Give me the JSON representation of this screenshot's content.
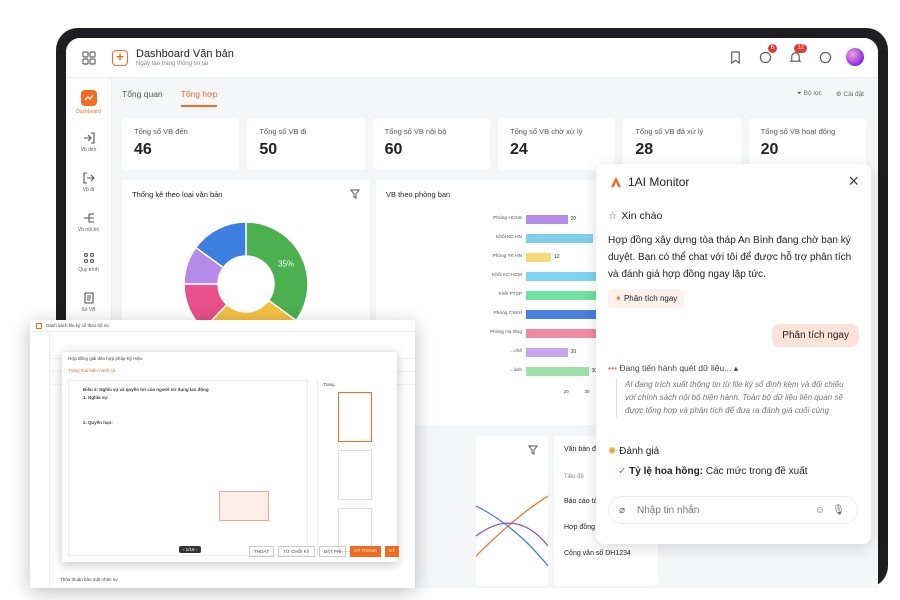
{
  "header": {
    "title": "Dashboard Văn bản",
    "subtitle": "Ngày tạo trang thông tin tại"
  },
  "header_badges": {
    "chat": "6",
    "bell": "12"
  },
  "sidebar": {
    "items": [
      {
        "label": "Dashboard"
      },
      {
        "label": "Vb đến"
      },
      {
        "label": "Vb đi"
      },
      {
        "label": "Vb nội bộ"
      },
      {
        "label": "Quy trình"
      },
      {
        "label": "Số VB"
      }
    ]
  },
  "tabs": [
    {
      "label": "Tổng quan"
    },
    {
      "label": "Tổng hợp"
    }
  ],
  "tab_actions": {
    "filter": "Bộ lọc",
    "settings": "Cài đặt"
  },
  "stats": [
    {
      "label": "Tổng số VB đến",
      "value": "46"
    },
    {
      "label": "Tổng số VB đi",
      "value": "50"
    },
    {
      "label": "Tổng số VB nội bộ",
      "value": "60"
    },
    {
      "label": "Tổng số VB chờ xử lý",
      "value": "24"
    },
    {
      "label": "Tổng số VB đã xử lý",
      "value": "28"
    },
    {
      "label": "Tổng số VB hoạt động",
      "value": "20"
    }
  ],
  "donut": {
    "title": "Thống kê theo loại văn bản"
  },
  "chart_data": [
    {
      "type": "pie",
      "title": "Thống kê theo loại văn bản",
      "values": [
        35,
        27,
        13,
        10,
        15
      ],
      "data_labels": [
        "35%"
      ],
      "colors": [
        "#4caf50",
        "#f4c142",
        "#e8508a",
        "#b48be8",
        "#3d7fe0"
      ]
    },
    {
      "type": "bar",
      "title": "VB theo phòng ban",
      "orientation": "horizontal",
      "categories": [
        "Phòng HCNS",
        "Khối KD HN",
        "Phòng TK HN",
        "Khối KD HCM",
        "Khối PTSP",
        "Phòng CSKH",
        "Phòng Hạ tầng",
        "…chế",
        "…ành"
      ],
      "values": [
        20,
        32,
        12,
        40,
        45,
        35,
        44,
        20,
        30
      ],
      "colors": [
        "#b38de8",
        "#7ed0e8",
        "#f7d978",
        "#7dd3f0",
        "#6ee2a0",
        "#4a7fdc",
        "#f08aa0",
        "#c7a6ee",
        "#9ee2a8"
      ],
      "xticks": [
        "20",
        "30",
        "40"
      ],
      "xlim": [
        0,
        48
      ]
    }
  ],
  "bar_card": {
    "title": "VB theo phòng ban"
  },
  "pending": {
    "title": "Văn bản đang cần xử lý",
    "col": "Tiêu đề",
    "rows": [
      "Báo cáo tài chính quý 3/20",
      "Hợp đồng BKS",
      "Công văn số DH1234"
    ]
  },
  "ai": {
    "title": "1AI Monitor",
    "hello": "Xin chào",
    "message": "Hợp đồng xây dựng tòa tháp An Bình đang chờ bạn ký duyệt. Bạn có thể chat với tôi để được hỗ trợ phân tích và đánh giá hợp đồng ngay lập tức.",
    "chip": "Phân tích ngay",
    "user_message": "Phân tích ngay",
    "status": "Đang tiến hành quét dữ liệu...",
    "quote": "AI đang trích xuất thông tin từ file ký số đính kèm và đối chiếu với chính sách nội bộ hiện hành. Toàn bộ dữ liệu liên quan sẽ được tổng hợp và phân tích để đưa ra đánh giá cuối cùng",
    "eval_title": "Đánh giá",
    "eval_label": "Tỷ lệ hoa hồng:",
    "eval_text": "Các mức trong đề xuất",
    "input_placeholder": "Nhập tin nhắn"
  },
  "overlay": {
    "title": "Danh sách file ký số theo hồ sơ",
    "doc_title": "Hợp đồng giải dân hợp pháp Ký Hiệu",
    "doc_status": "Trạng thái hiện hành cá",
    "page_label": "Trang",
    "page_total": "1/18",
    "sections": [
      "Điều 4: Nghĩa vụ và quyền lợi của người sử dụng lao động",
      "1. Nghĩa vụ:",
      "2. Quyền hạn:"
    ],
    "buttons": [
      "THOÁT",
      "TỪ CHỐI KÝ",
      "ĐẶT PHÍ",
      "KÝ THANH",
      "KÝ"
    ],
    "footer": "Thỏa thuận bảo mật nhân sự"
  }
}
